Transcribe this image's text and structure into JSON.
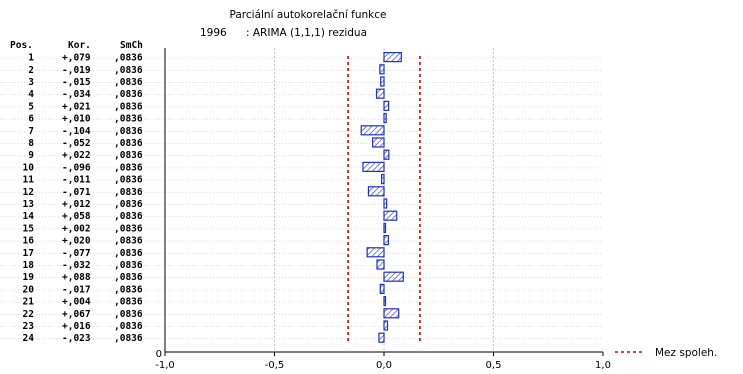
{
  "chart_data": {
    "type": "bar",
    "orientation": "horizontal",
    "title": "Parciální autokorelační funkce",
    "subtitle_prefix": "1996",
    "subtitle": ": ARIMA (1,1,1) rezidua",
    "columns": [
      "Pos.",
      "Kor.",
      "SmCh"
    ],
    "lags": [
      "1",
      "2",
      "3",
      "4",
      "5",
      "6",
      "7",
      "8",
      "9",
      "10",
      "11",
      "12",
      "13",
      "14",
      "15",
      "16",
      "17",
      "18",
      "19",
      "20",
      "21",
      "22",
      "23",
      "24"
    ],
    "correlations_text": [
      "+,079",
      "-,019",
      "-,015",
      "-,034",
      "+,021",
      "+,010",
      "-,104",
      "-,052",
      "+,022",
      "-,096",
      "-,011",
      "-,071",
      "+,012",
      "+,058",
      "+,002",
      "+,020",
      "-,077",
      "-,032",
      "+,088",
      "-,017",
      "+,004",
      "+,067",
      "+,016",
      "-,023"
    ],
    "values": [
      0.079,
      -0.019,
      -0.015,
      -0.034,
      0.021,
      0.01,
      -0.104,
      -0.052,
      0.022,
      -0.096,
      -0.011,
      -0.071,
      0.012,
      0.058,
      0.002,
      0.02,
      -0.077,
      -0.032,
      0.088,
      -0.017,
      0.004,
      0.067,
      0.016,
      -0.023
    ],
    "std_err_text": [
      ",0836",
      ",0836",
      ",0836",
      ",0836",
      ",0836",
      ",0836",
      ",0836",
      ",0836",
      ",0836",
      ",0836",
      ",0836",
      ",0836",
      ",0836",
      ",0836",
      ",0836",
      ",0836",
      ",0836",
      ",0836",
      ",0836",
      ",0836",
      ",0836",
      ",0836",
      ",0836",
      ",0836"
    ],
    "confidence_limit": 0.164,
    "xlim": [
      -1.0,
      1.0
    ],
    "x_ticks": [
      -1.0,
      -0.5,
      0.0,
      0.5,
      1.0
    ],
    "x_tick_labels": [
      "-1,0",
      "-0,5",
      "0,0",
      "0,5",
      "1,0"
    ],
    "y_tick_labels": [
      "0"
    ],
    "legend_label": "Mez spoleh.",
    "legend_position": "bottom-right",
    "grid": true,
    "colors": {
      "bar_stroke": "#1f2fbf",
      "bar_hatch": "#1f2fbf",
      "limit_line": "#d00000",
      "grid": "#c8c8c8"
    }
  }
}
